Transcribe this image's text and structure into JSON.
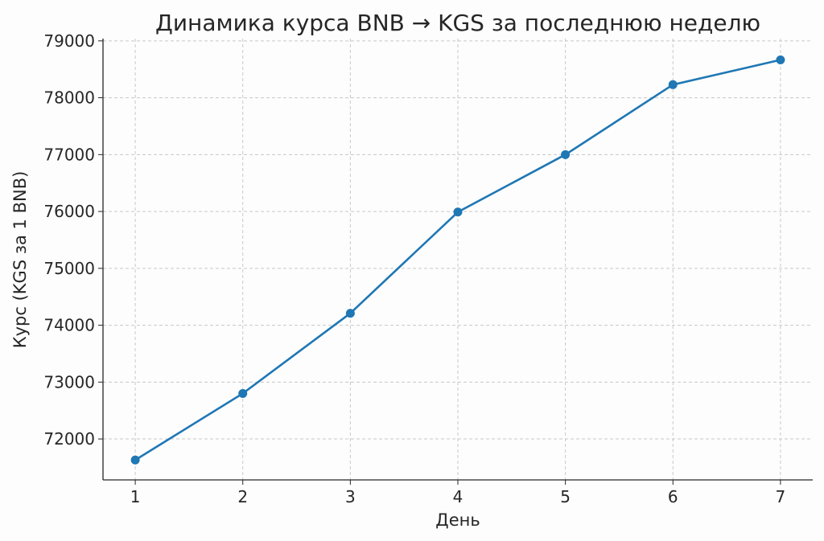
{
  "chart_data": {
    "type": "line",
    "title": "Динамика курса BNB → KGS за последнюю неделю",
    "xlabel": "День",
    "ylabel": "Курс (KGS за 1 BNB)",
    "x": [
      1,
      2,
      3,
      4,
      5,
      6,
      7
    ],
    "series": [
      {
        "values": [
          71630,
          72800,
          74210,
          75990,
          77000,
          78230,
          78665
        ],
        "color": "#1f77b4",
        "marker": "circle"
      }
    ],
    "xticks": [
      "1",
      "2",
      "3",
      "4",
      "5",
      "6",
      "7"
    ],
    "yticks": [
      "72000",
      "73000",
      "74000",
      "75000",
      "76000",
      "77000",
      "78000",
      "79000"
    ],
    "xlim": [
      0.7,
      7.3
    ],
    "ylim": [
      71280,
      79040
    ],
    "grid": true
  }
}
